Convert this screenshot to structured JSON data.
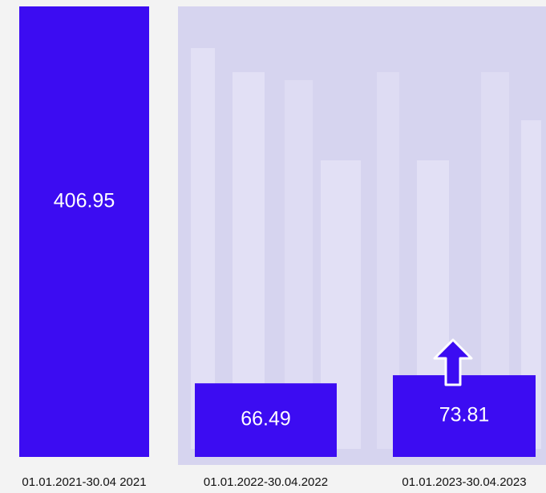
{
  "chart_data": {
    "type": "bar",
    "categories": [
      "01.01.2021-30.04 2021",
      "01.01.2022-30.04.2022",
      "01.01.2023-30.04.2023"
    ],
    "values": [
      406.95,
      66.49,
      73.81
    ],
    "color": "#3c0cf2"
  }
}
